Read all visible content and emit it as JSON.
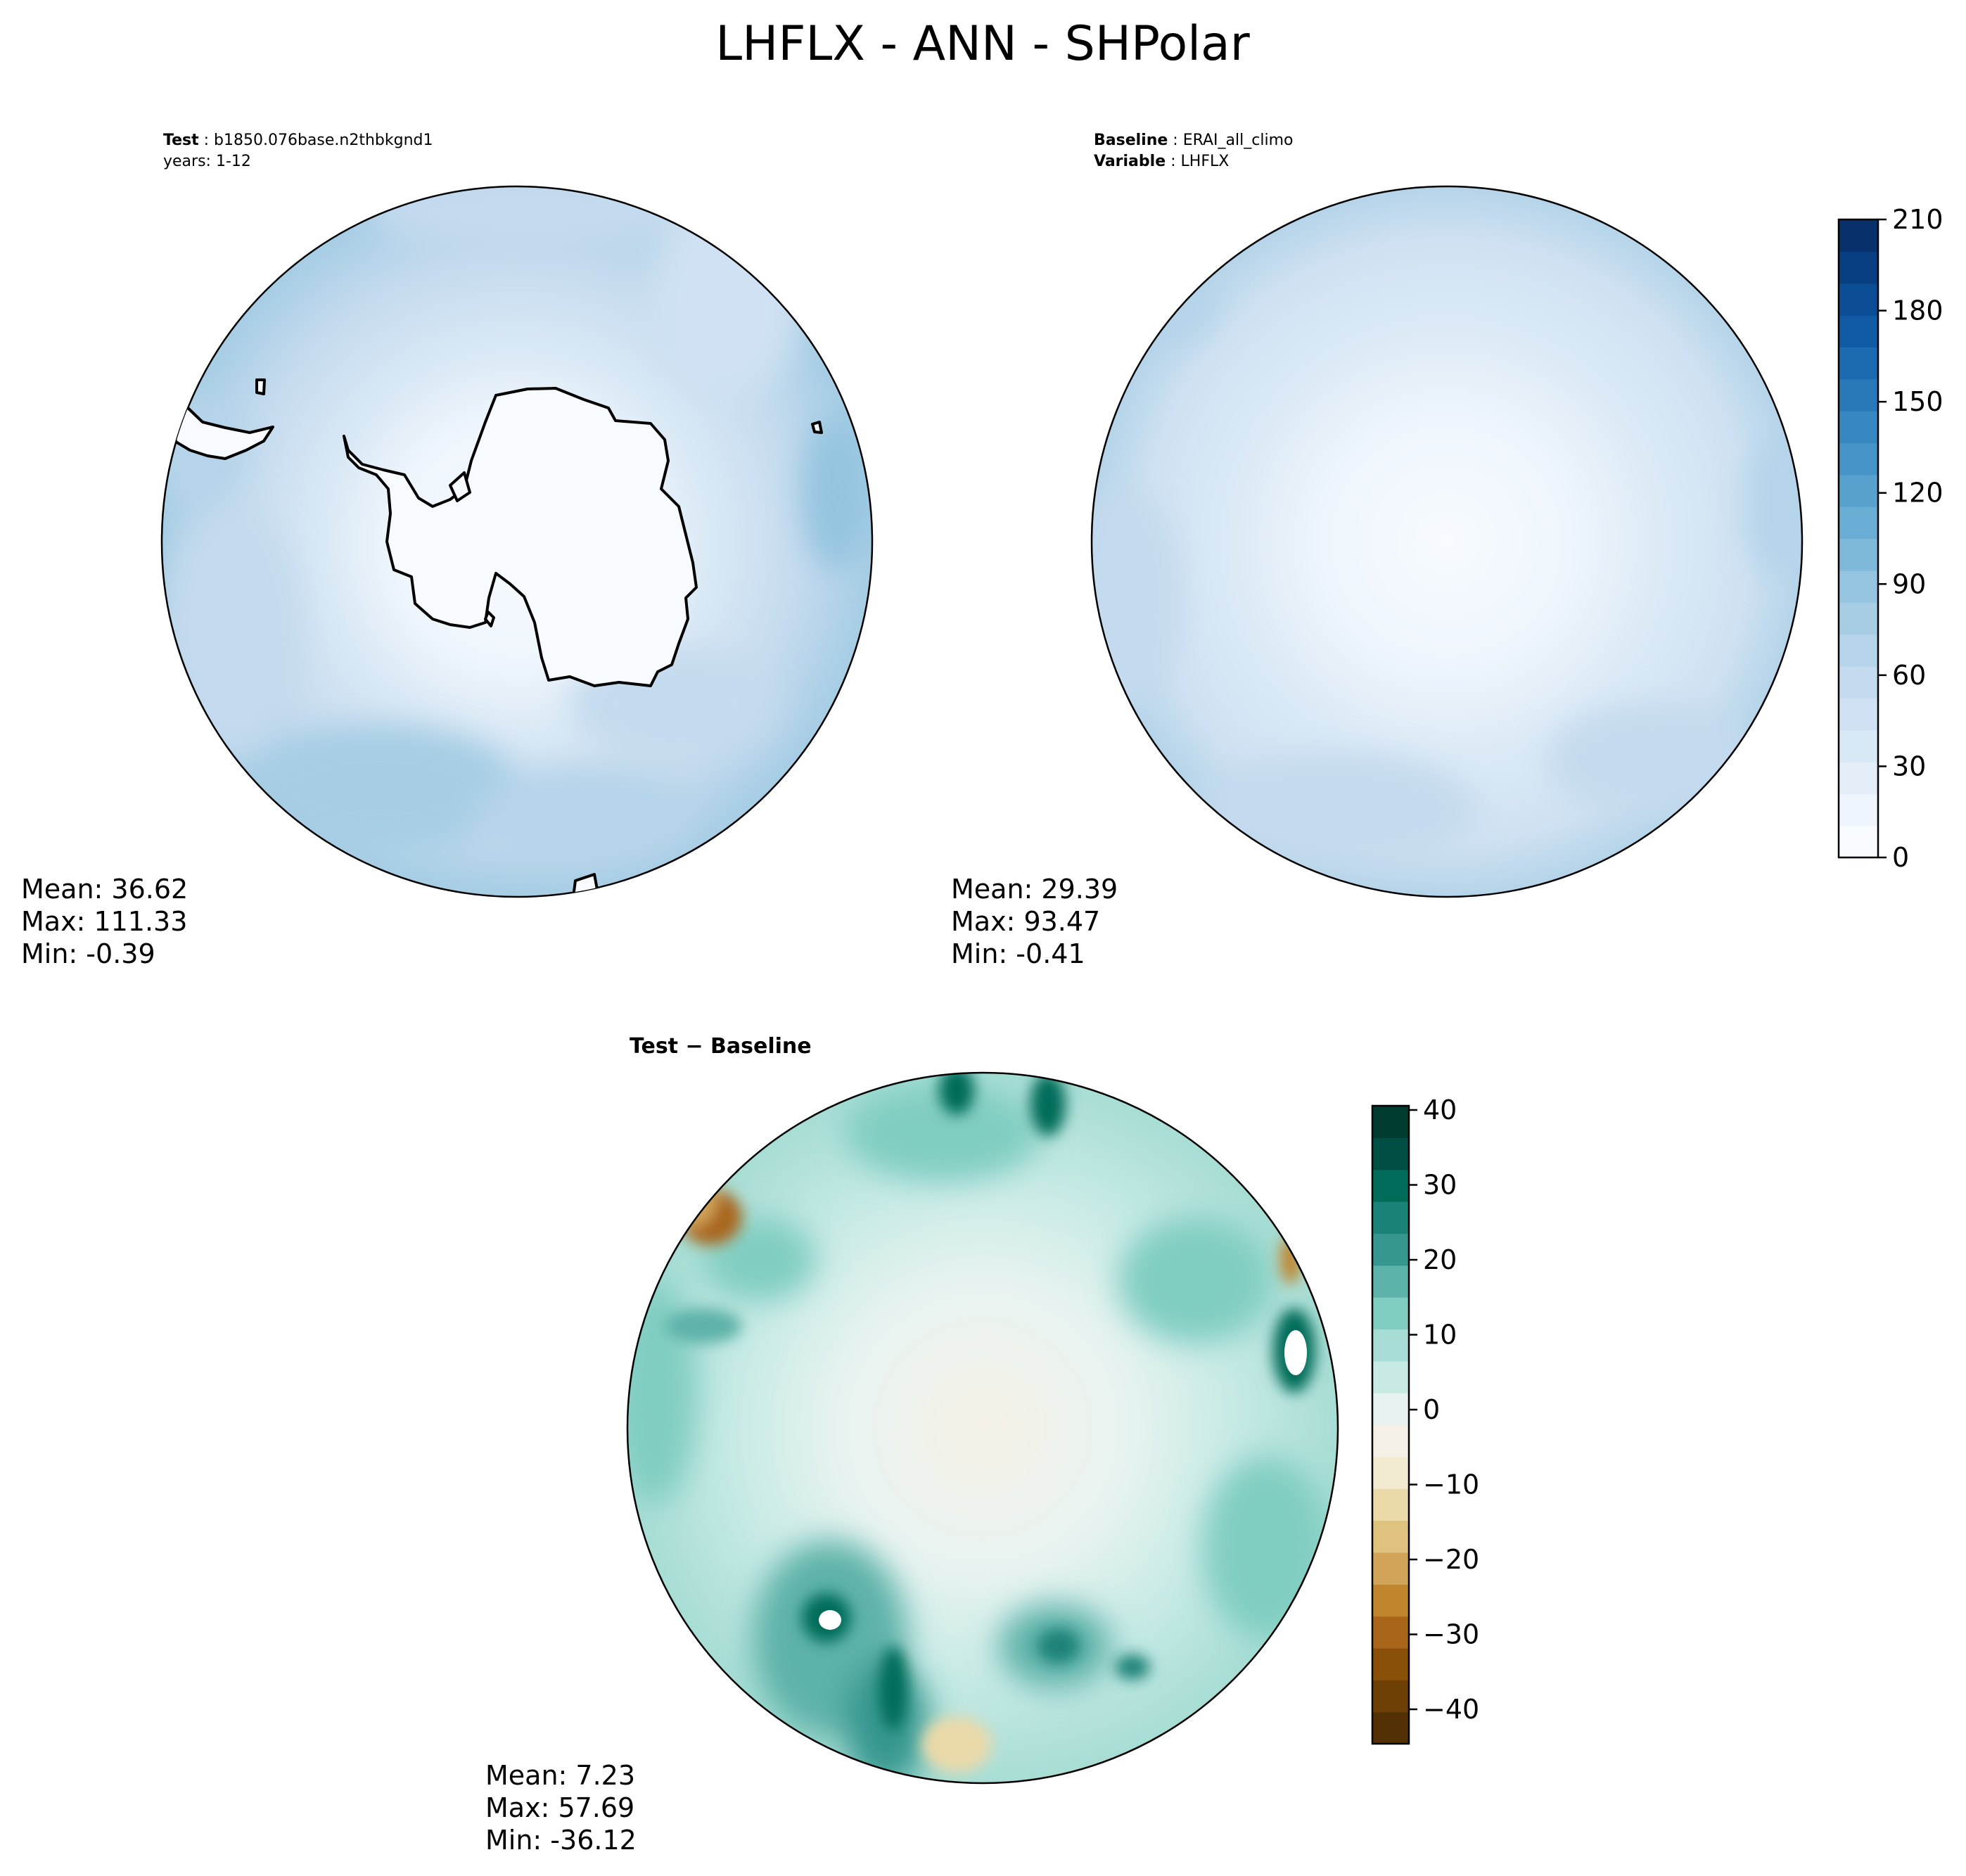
{
  "figure": {
    "title": "LHFLX - ANN - SHPolar"
  },
  "panels": {
    "test": {
      "label_bold": "Test",
      "label_value": "b1850.076base.n2thbkgnd1",
      "years": "years: 1-12",
      "mean": "Mean: 36.62",
      "max": "Max: 111.33",
      "min": "Min: -0.39"
    },
    "baseline": {
      "label_bold": "Baseline",
      "label_value": "ERAI_all_climo",
      "var_bold": "Variable",
      "var_value": "LHFLX",
      "mean": "Mean: 29.39",
      "max": "Max: 93.47",
      "min": "Min: -0.41"
    },
    "diff": {
      "title": "Test − Baseline",
      "mean": "Mean:  7.23",
      "max": "Max: 57.69",
      "min": "Min: -36.12"
    }
  },
  "colorbars": {
    "main": {
      "ticks": [
        "210",
        "180",
        "150",
        "120",
        "90",
        "60",
        "30",
        "0"
      ],
      "colors": [
        "#f7fbff",
        "#eef5fc",
        "#e3eef9",
        "#d9e8f5",
        "#cfe1f2",
        "#c4daee",
        "#b5d4e9",
        "#a6cde4",
        "#94c4df",
        "#7fb9da",
        "#6aaed6",
        "#58a1cf",
        "#4694c7",
        "#3787c0",
        "#2979b9",
        "#1c6ab0",
        "#105ba4",
        "#0b4d94",
        "#083f80",
        "#08306b"
      ]
    },
    "diff": {
      "ticks": [
        "40",
        "30",
        "20",
        "10",
        "0",
        "−10",
        "−20",
        "−30",
        "−40"
      ],
      "colors": [
        "#543005",
        "#6e4006",
        "#8a5009",
        "#a9661a",
        "#c0852d",
        "#d1a45a",
        "#dfc27d",
        "#ebd9a8",
        "#f3ead2",
        "#f5f1e6",
        "#e8f3f1",
        "#c7eae5",
        "#a7ddd4",
        "#80cdc1",
        "#5db2a9",
        "#35978f",
        "#1b8278",
        "#016c59",
        "#004f45",
        "#003c30"
      ]
    }
  },
  "chart_data": [
    {
      "type": "heatmap",
      "title": "Test",
      "subtitle": "b1850.076base.n2thbkgnd1, years: 1-12",
      "variable": "LHFLX",
      "projection": "south polar stereographic",
      "colormap": "Blues",
      "range": [
        0,
        210
      ],
      "stats": {
        "mean": 36.62,
        "max": 111.33,
        "min": -0.39
      }
    },
    {
      "type": "heatmap",
      "title": "Baseline",
      "subtitle": "ERAI_all_climo",
      "variable": "LHFLX",
      "projection": "south polar stereographic",
      "colormap": "Blues",
      "range": [
        0,
        210
      ],
      "stats": {
        "mean": 29.39,
        "max": 93.47,
        "min": -0.41
      }
    },
    {
      "type": "heatmap",
      "title": "Test − Baseline",
      "projection": "south polar stereographic",
      "colormap": "BrBG",
      "range": [
        -45,
        40
      ],
      "stats": {
        "mean": 7.23,
        "max": 57.69,
        "min": -36.12
      }
    }
  ]
}
